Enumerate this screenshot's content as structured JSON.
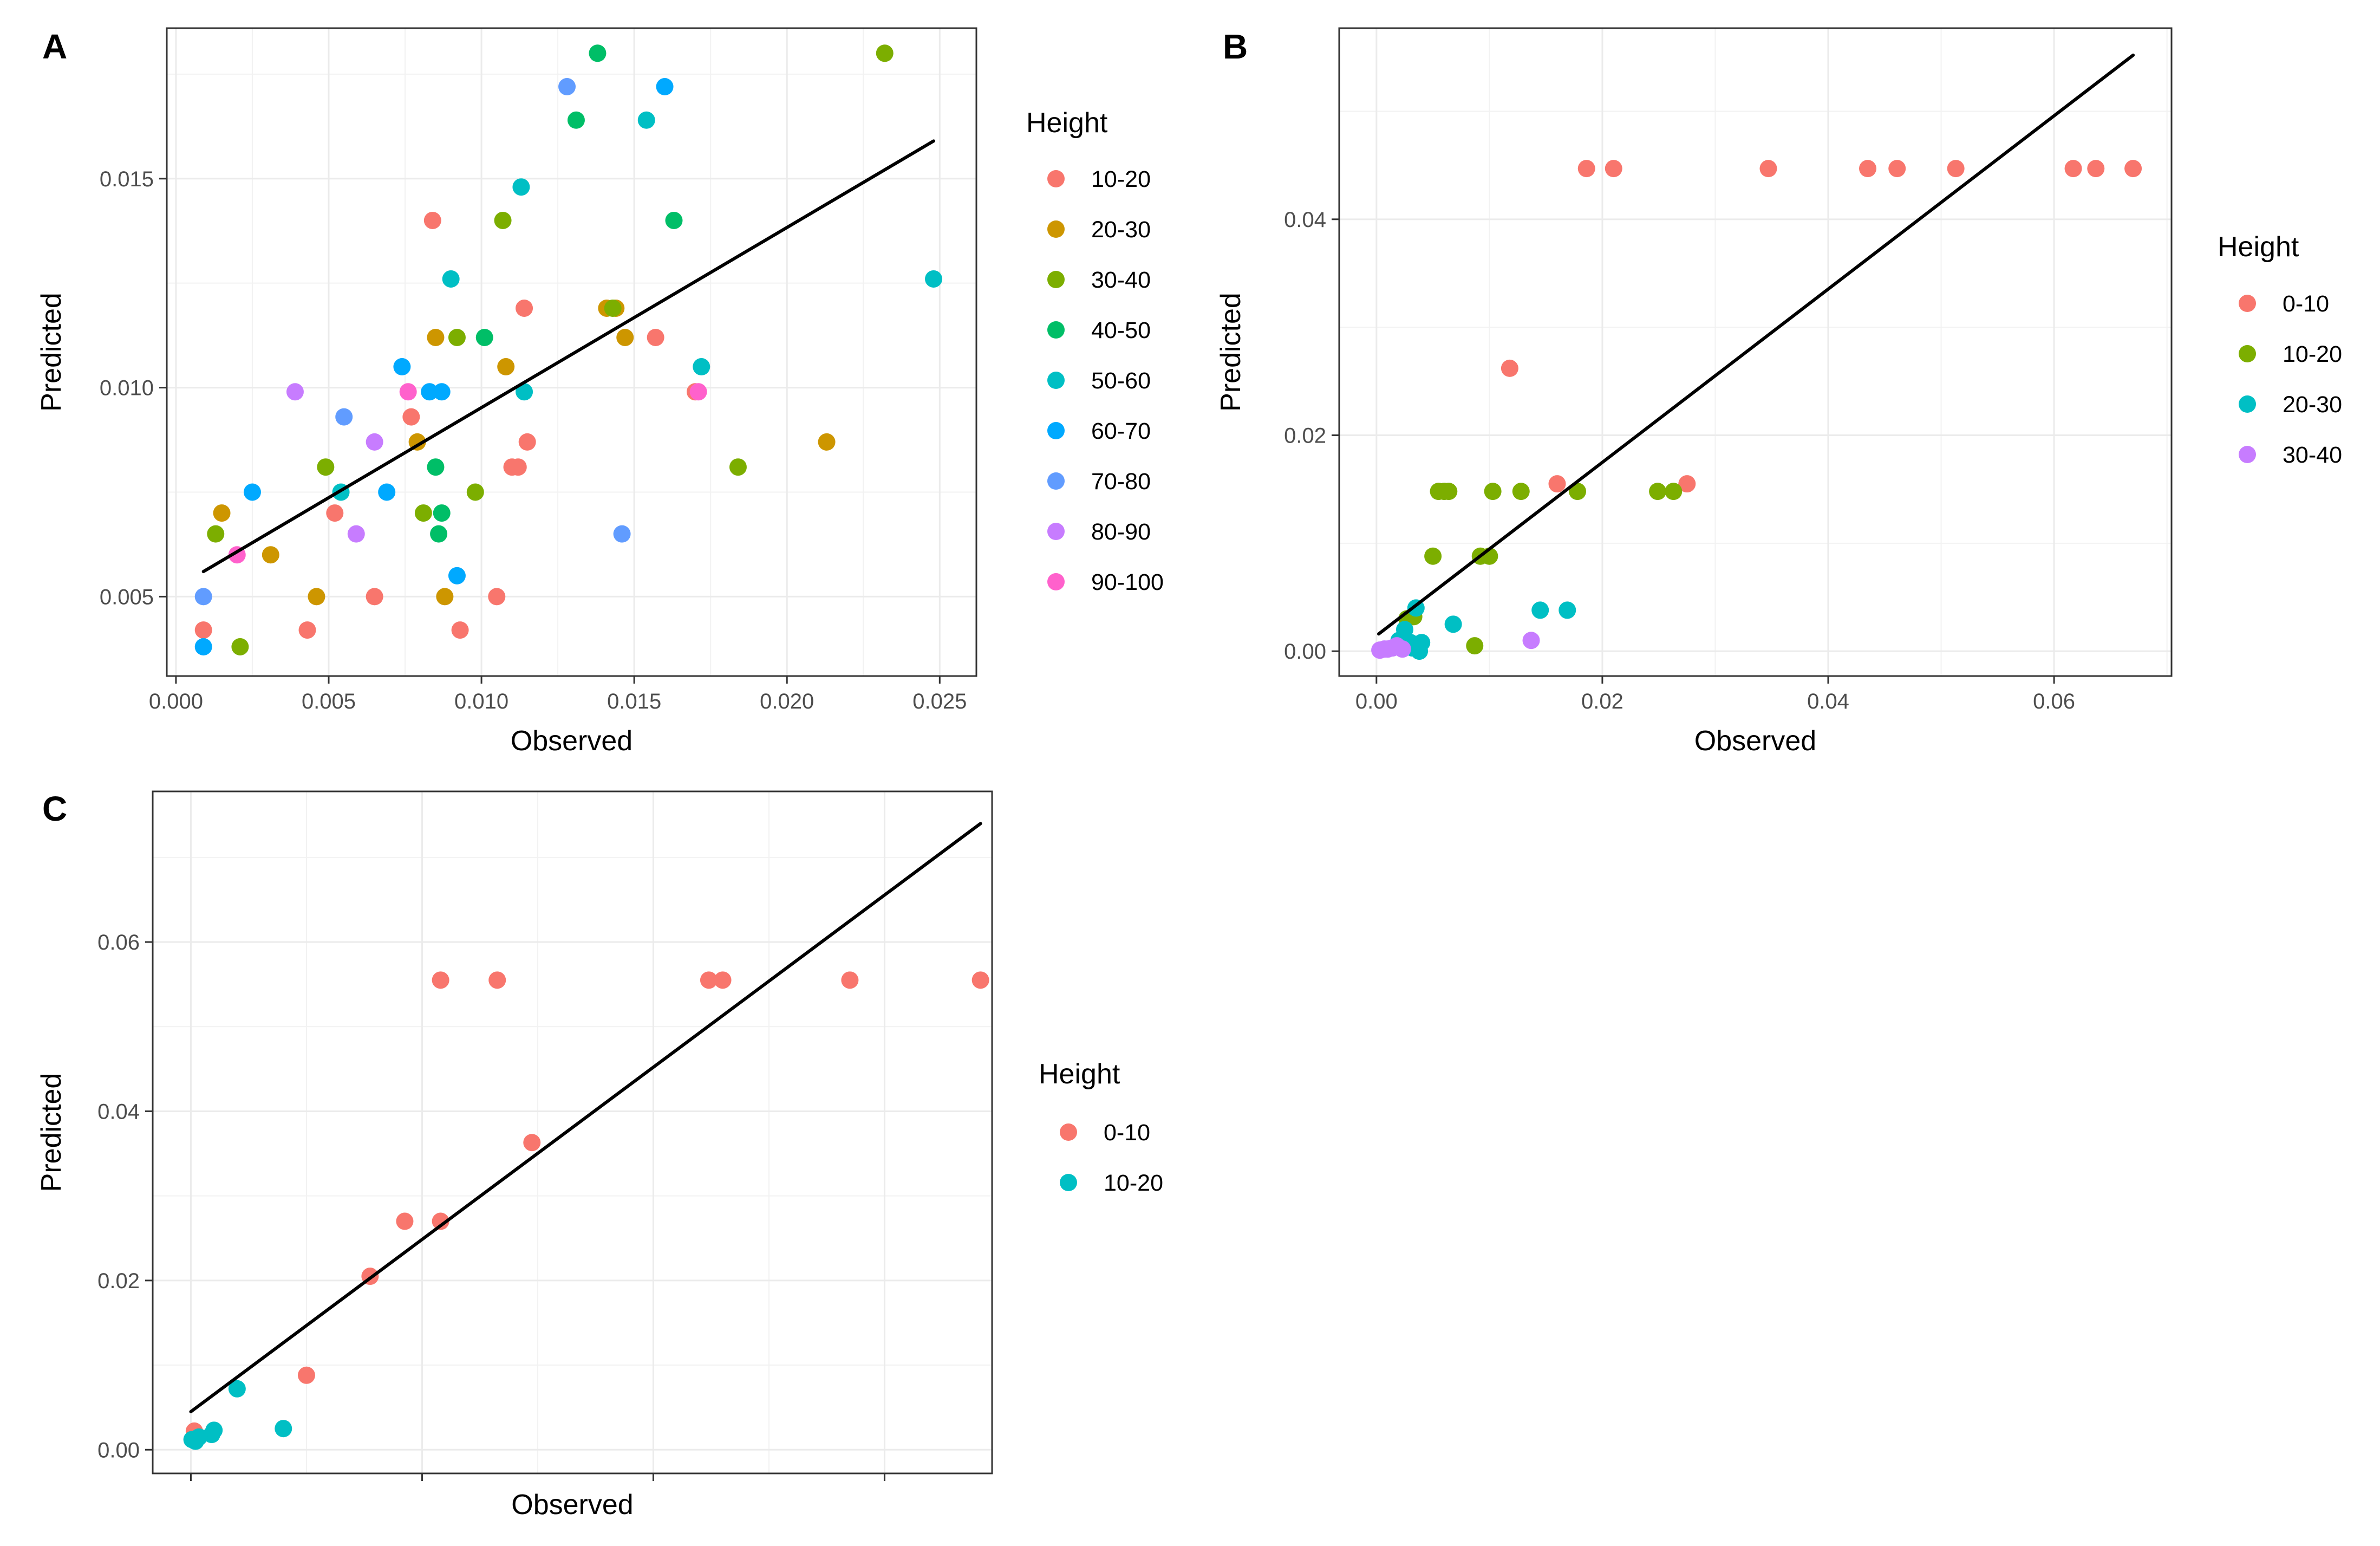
{
  "chart_data": [
    {
      "panel": "A",
      "type": "scatter",
      "xlabel": "Observed",
      "ylabel": "Predicted",
      "xlim": [
        -0.0003,
        0.0262
      ],
      "ylim": [
        0.0031,
        0.0186
      ],
      "xticks": [
        0.0,
        0.005,
        0.01,
        0.015,
        0.02,
        0.025
      ],
      "xtick_labels": [
        "0.000",
        "0.005",
        "0.010",
        "0.015",
        "0.020",
        "0.025"
      ],
      "yticks": [
        0.005,
        0.01,
        0.015
      ],
      "ytick_labels": [
        "0.005",
        "0.010",
        "0.015"
      ],
      "legend_title": "Height",
      "fit_line": [
        [
          0.0009,
          0.0056
        ],
        [
          0.0248,
          0.0159
        ]
      ],
      "series": [
        {
          "name": "10-20",
          "color": "#F8766D",
          "points": [
            [
              0.0009,
              0.0042
            ],
            [
              0.0043,
              0.0042
            ],
            [
              0.0052,
              0.007
            ],
            [
              0.0065,
              0.005
            ],
            [
              0.0077,
              0.0093
            ],
            [
              0.0084,
              0.014
            ],
            [
              0.0093,
              0.0042
            ],
            [
              0.0105,
              0.005
            ],
            [
              0.011,
              0.0081
            ],
            [
              0.0112,
              0.0081
            ],
            [
              0.0114,
              0.0119
            ],
            [
              0.0115,
              0.0087
            ],
            [
              0.0157,
              0.0112
            ],
            [
              0.017,
              0.0099
            ]
          ]
        },
        {
          "name": "20-30",
          "color": "#CD9600",
          "points": [
            [
              0.0015,
              0.007
            ],
            [
              0.0031,
              0.006
            ],
            [
              0.0046,
              0.005
            ],
            [
              0.0079,
              0.0087
            ],
            [
              0.0085,
              0.0112
            ],
            [
              0.0088,
              0.005
            ],
            [
              0.0108,
              0.0105
            ],
            [
              0.0141,
              0.0119
            ],
            [
              0.0144,
              0.0119
            ],
            [
              0.0147,
              0.0112
            ],
            [
              0.0213,
              0.0087
            ]
          ]
        },
        {
          "name": "30-40",
          "color": "#7CAE00",
          "points": [
            [
              0.0013,
              0.0065
            ],
            [
              0.0021,
              0.0038
            ],
            [
              0.0049,
              0.0081
            ],
            [
              0.0081,
              0.007
            ],
            [
              0.0092,
              0.0112
            ],
            [
              0.0098,
              0.0075
            ],
            [
              0.0107,
              0.014
            ],
            [
              0.0143,
              0.0119
            ],
            [
              0.0184,
              0.0081
            ],
            [
              0.0232,
              0.018
            ]
          ]
        },
        {
          "name": "40-50",
          "color": "#00BE67",
          "points": [
            [
              0.0085,
              0.0081
            ],
            [
              0.0086,
              0.0065
            ],
            [
              0.0087,
              0.007
            ],
            [
              0.0101,
              0.0112
            ],
            [
              0.0138,
              0.018
            ],
            [
              0.0131,
              0.0164
            ],
            [
              0.0163,
              0.014
            ]
          ]
        },
        {
          "name": "50-60",
          "color": "#00BFC4",
          "points": [
            [
              0.0054,
              0.0075
            ],
            [
              0.009,
              0.0126
            ],
            [
              0.0113,
              0.0148
            ],
            [
              0.0114,
              0.0099
            ],
            [
              0.0154,
              0.0164
            ],
            [
              0.0172,
              0.0105
            ],
            [
              0.0248,
              0.0126
            ]
          ]
        },
        {
          "name": "60-70",
          "color": "#00A9FF",
          "points": [
            [
              0.0009,
              0.0038
            ],
            [
              0.0025,
              0.0075
            ],
            [
              0.0069,
              0.0075
            ],
            [
              0.0074,
              0.0105
            ],
            [
              0.0083,
              0.0099
            ],
            [
              0.0087,
              0.0099
            ],
            [
              0.0092,
              0.0055
            ],
            [
              0.016,
              0.0172
            ]
          ]
        },
        {
          "name": "70-80",
          "color": "#619CFF",
          "points": [
            [
              0.0009,
              0.005
            ],
            [
              0.0055,
              0.0093
            ],
            [
              0.0128,
              0.0172
            ],
            [
              0.0146,
              0.0065
            ]
          ]
        },
        {
          "name": "80-90",
          "color": "#C77CFF",
          "points": [
            [
              0.0039,
              0.0099
            ],
            [
              0.0059,
              0.0065
            ],
            [
              0.0065,
              0.0087
            ]
          ]
        },
        {
          "name": "90-100",
          "color": "#FF61CC",
          "points": [
            [
              0.002,
              0.006
            ],
            [
              0.0076,
              0.0099
            ],
            [
              0.0171,
              0.0099
            ]
          ]
        }
      ]
    },
    {
      "panel": "B",
      "type": "scatter",
      "xlabel": "Observed",
      "ylabel": "Predicted",
      "xlim": [
        -0.0033,
        0.0704
      ],
      "ylim": [
        -0.0023,
        0.0577
      ],
      "xticks": [
        0.0,
        0.02,
        0.04,
        0.06
      ],
      "xtick_labels": [
        "0.00",
        "0.02",
        "0.04",
        "0.06"
      ],
      "yticks": [
        0.0,
        0.02,
        0.04
      ],
      "ytick_labels": [
        "0.00",
        "0.02",
        "0.04"
      ],
      "legend_title": "Height",
      "fit_line": [
        [
          0.0002,
          0.0016
        ],
        [
          0.067,
          0.0552
        ]
      ],
      "series": [
        {
          "name": "0-10",
          "color": "#F8766D",
          "points": [
            [
              0.0118,
              0.0262
            ],
            [
              0.016,
              0.0155
            ],
            [
              0.0186,
              0.0447
            ],
            [
              0.021,
              0.0447
            ],
            [
              0.0275,
              0.0155
            ],
            [
              0.0347,
              0.0447
            ],
            [
              0.0435,
              0.0447
            ],
            [
              0.0461,
              0.0447
            ],
            [
              0.0513,
              0.0447
            ],
            [
              0.0617,
              0.0447
            ],
            [
              0.0637,
              0.0447
            ],
            [
              0.067,
              0.0447
            ]
          ]
        },
        {
          "name": "10-20",
          "color": "#7CAE00",
          "points": [
            [
              0.0027,
              0.003
            ],
            [
              0.0033,
              0.0032
            ],
            [
              0.005,
              0.0088
            ],
            [
              0.0055,
              0.0148
            ],
            [
              0.006,
              0.0148
            ],
            [
              0.0064,
              0.0148
            ],
            [
              0.0087,
              0.0005
            ],
            [
              0.0092,
              0.0088
            ],
            [
              0.01,
              0.0088
            ],
            [
              0.0103,
              0.0148
            ],
            [
              0.0128,
              0.0148
            ],
            [
              0.0178,
              0.0148
            ],
            [
              0.0249,
              0.0148
            ],
            [
              0.0263,
              0.0148
            ]
          ]
        },
        {
          "name": "20-30",
          "color": "#00BFC4",
          "points": [
            [
              0.002,
              0.001
            ],
            [
              0.0025,
              0.002
            ],
            [
              0.003,
              0.0008
            ],
            [
              0.0032,
              0.0003
            ],
            [
              0.0035,
              0.004
            ],
            [
              0.0036,
              0.0005
            ],
            [
              0.004,
              0.0008
            ],
            [
              0.0068,
              0.0025
            ],
            [
              0.0145,
              0.0038
            ],
            [
              0.0169,
              0.0038
            ],
            [
              0.0038,
              0.0
            ]
          ]
        },
        {
          "name": "30-40",
          "color": "#C77CFF",
          "points": [
            [
              0.0003,
              0.0001
            ],
            [
              0.0007,
              0.0002
            ],
            [
              0.001,
              0.0002
            ],
            [
              0.0014,
              0.0003
            ],
            [
              0.0018,
              0.0005
            ],
            [
              0.0023,
              0.0002
            ],
            [
              0.0137,
              0.001
            ]
          ]
        }
      ]
    },
    {
      "panel": "C",
      "type": "scatter",
      "xlabel": "Observed",
      "ylabel": "Predicted",
      "xlim": [
        -0.0033,
        0.0693
      ],
      "ylim": [
        -0.0028,
        0.0778
      ],
      "xticks": [
        0.0,
        0.02,
        0.04,
        0.06
      ],
      "xtick_labels": [
        "",
        "",
        "",
        ""
      ],
      "yticks": [
        0.0,
        0.02,
        0.04,
        0.06
      ],
      "ytick_labels": [
        "0.00",
        "0.02",
        "0.04",
        "0.06"
      ],
      "legend_title": "Height",
      "fit_line": [
        [
          0.0,
          0.0045
        ],
        [
          0.0683,
          0.074
        ]
      ],
      "series": [
        {
          "name": "0-10",
          "color": "#F8766D",
          "points": [
            [
              0.01,
              0.0088
            ],
            [
              0.0155,
              0.0205
            ],
            [
              0.0185,
              0.027
            ],
            [
              0.0216,
              0.027
            ],
            [
              0.0216,
              0.0555
            ],
            [
              0.0265,
              0.0555
            ],
            [
              0.0295,
              0.0363
            ],
            [
              0.0448,
              0.0555
            ],
            [
              0.046,
              0.0555
            ],
            [
              0.057,
              0.0555
            ],
            [
              0.0683,
              0.0555
            ],
            [
              0.0003,
              0.0022
            ]
          ]
        },
        {
          "name": "10-20",
          "color": "#00BFC4",
          "points": [
            [
              0.0001,
              0.0012
            ],
            [
              0.0004,
              0.001
            ],
            [
              0.0007,
              0.0015
            ],
            [
              0.0018,
              0.0018
            ],
            [
              0.002,
              0.0023
            ],
            [
              0.004,
              0.0072
            ],
            [
              0.008,
              0.0025
            ]
          ]
        }
      ]
    }
  ]
}
